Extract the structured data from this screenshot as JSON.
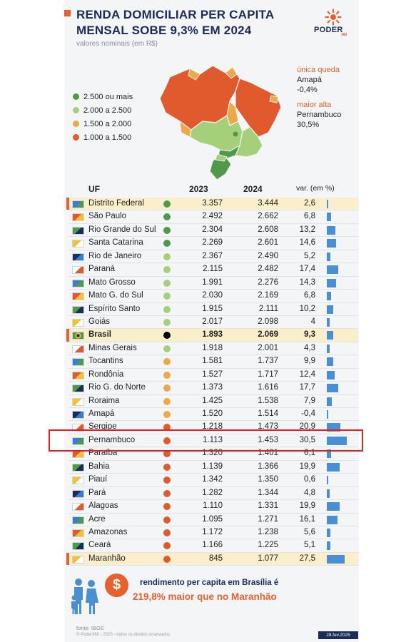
{
  "header": {
    "title": "RENDA DOMICILIAR PER CAPITA MENSAL SOBE 9,3% EM 2024",
    "subtitle": "valores nominais (em R$)",
    "logo_text": "PODER",
    "logo_sub": "360"
  },
  "legend": [
    {
      "label": "2.500 ou mais",
      "color": "#4f9a48"
    },
    {
      "label": "2.000 a 2.500",
      "color": "#a6cf7a"
    },
    {
      "label": "1.500 a 2.000",
      "color": "#eba947"
    },
    {
      "label": "1.000 a 1.500",
      "color": "#e05a2e"
    }
  ],
  "notes": {
    "queda_label": "única queda",
    "queda_state": "Amapá",
    "queda_value": "-0,4%",
    "alta_label": "maior alta",
    "alta_state": "Pernambuco",
    "alta_value": "30,5%"
  },
  "columns": {
    "uf": "UF",
    "y2023": "2023",
    "y2024": "2024",
    "var": "var. (em %)"
  },
  "chart_data": {
    "type": "table",
    "title": "RENDA DOMICILIAR PER CAPITA MENSAL SOBE 9,3% EM 2024",
    "subtitle": "valores nominais (em R$)",
    "columns": [
      "UF",
      "2023",
      "2024",
      "var. (em %)"
    ],
    "rows": [
      {
        "uf": "Distrito Federal",
        "y2023": "3.357",
        "y2024": "3.444",
        "var": "2,6",
        "v": 2.6,
        "group": "2.500 ou mais",
        "highlight": true
      },
      {
        "uf": "São Paulo",
        "y2023": "2.492",
        "y2024": "2.662",
        "var": "6,8",
        "v": 6.8,
        "group": "2.500 ou mais"
      },
      {
        "uf": "Rio Grande do Sul",
        "y2023": "2.304",
        "y2024": "2.608",
        "var": "13,2",
        "v": 13.2,
        "group": "2.500 ou mais"
      },
      {
        "uf": "Santa Catarina",
        "y2023": "2.269",
        "y2024": "2.601",
        "var": "14,6",
        "v": 14.6,
        "group": "2.500 ou mais"
      },
      {
        "uf": "Rio de Janeiro",
        "y2023": "2.367",
        "y2024": "2.490",
        "var": "5,2",
        "v": 5.2,
        "group": "2.000 a 2.500"
      },
      {
        "uf": "Paraná",
        "y2023": "2.115",
        "y2024": "2.482",
        "var": "17,4",
        "v": 17.4,
        "group": "2.000 a 2.500"
      },
      {
        "uf": "Mato Grosso",
        "y2023": "1.991",
        "y2024": "2.276",
        "var": "14,3",
        "v": 14.3,
        "group": "2.000 a 2.500"
      },
      {
        "uf": "Mato G. do Sul",
        "y2023": "2.030",
        "y2024": "2.169",
        "var": "6,8",
        "v": 6.8,
        "group": "2.000 a 2.500"
      },
      {
        "uf": "Espírito Santo",
        "y2023": "1.915",
        "y2024": "2.111",
        "var": "10,2",
        "v": 10.2,
        "group": "2.000 a 2.500"
      },
      {
        "uf": "Goiás",
        "y2023": "2.017",
        "y2024": "2.098",
        "var": "4",
        "v": 4.0,
        "group": "2.000 a 2.500"
      },
      {
        "uf": "Brasil",
        "y2023": "1.893",
        "y2024": "2.069",
        "var": "9,3",
        "v": 9.3,
        "group": "Brasil",
        "highlight": true,
        "strong": true
      },
      {
        "uf": "Minas Gerais",
        "y2023": "1.918",
        "y2024": "2.001",
        "var": "4,3",
        "v": 4.3,
        "group": "2.000 a 2.500"
      },
      {
        "uf": "Tocantins",
        "y2023": "1.581",
        "y2024": "1.737",
        "var": "9,9",
        "v": 9.9,
        "group": "1.500 a 2.000"
      },
      {
        "uf": "Rondônia",
        "y2023": "1.527",
        "y2024": "1.717",
        "var": "12,4",
        "v": 12.4,
        "group": "1.500 a 2.000"
      },
      {
        "uf": "Rio G. do Norte",
        "y2023": "1.373",
        "y2024": "1.616",
        "var": "17,7",
        "v": 17.7,
        "group": "1.500 a 2.000"
      },
      {
        "uf": "Roraima",
        "y2023": "1.425",
        "y2024": "1.538",
        "var": "7,9",
        "v": 7.9,
        "group": "1.500 a 2.000"
      },
      {
        "uf": "Amapá",
        "y2023": "1.520",
        "y2024": "1.514",
        "var": "-0,4",
        "v": -0.4,
        "group": "1.500 a 2.000"
      },
      {
        "uf": "Sergipe",
        "y2023": "1.218",
        "y2024": "1.473",
        "var": "20,9",
        "v": 20.9,
        "group": "1.000 a 1.500"
      },
      {
        "uf": "Pernambuco",
        "y2023": "1.113",
        "y2024": "1.453",
        "var": "30,5",
        "v": 30.5,
        "group": "1.000 a 1.500"
      },
      {
        "uf": "Paraíba",
        "y2023": "1.320",
        "y2024": "1.401",
        "var": "6,1",
        "v": 6.1,
        "group": "1.000 a 1.500"
      },
      {
        "uf": "Bahia",
        "y2023": "1.139",
        "y2024": "1.366",
        "var": "19,9",
        "v": 19.9,
        "group": "1.000 a 1.500"
      },
      {
        "uf": "Piauí",
        "y2023": "1.342",
        "y2024": "1.350",
        "var": "0,6",
        "v": 0.6,
        "group": "1.000 a 1.500"
      },
      {
        "uf": "Pará",
        "y2023": "1.282",
        "y2024": "1.344",
        "var": "4,8",
        "v": 4.8,
        "group": "1.000 a 1.500"
      },
      {
        "uf": "Alagoas",
        "y2023": "1.110",
        "y2024": "1.331",
        "var": "19,9",
        "v": 19.9,
        "group": "1.000 a 1.500"
      },
      {
        "uf": "Acre",
        "y2023": "1.095",
        "y2024": "1.271",
        "var": "16,1",
        "v": 16.1,
        "group": "1.000 a 1.500"
      },
      {
        "uf": "Amazonas",
        "y2023": "1.172",
        "y2024": "1.238",
        "var": "5,6",
        "v": 5.6,
        "group": "1.000 a 1.500"
      },
      {
        "uf": "Ceará",
        "y2023": "1.166",
        "y2024": "1.225",
        "var": "5,1",
        "v": 5.1,
        "group": "1.000 a 1.500"
      },
      {
        "uf": "Maranhão",
        "y2023": "845",
        "y2024": "1.077",
        "var": "27,5",
        "v": 27.5,
        "group": "1.000 a 1.500",
        "highlight": true
      }
    ],
    "group_colors": {
      "2.500 ou mais": "#4f9a48",
      "2.000 a 2.500": "#a6cf7a",
      "1.500 a 2.000": "#eba947",
      "1.000 a 1.500": "#e05a2e",
      "Brasil": "#000000"
    },
    "bar_color": "#4a8fd4"
  },
  "bottom": {
    "coin": "$",
    "line1": "rendimento per capita em Brasília é",
    "line2": "219,8% maior que no Maranhão"
  },
  "footer": {
    "source": "fonte: IBGE",
    "copyright": "© Poder360 - 2025 - todos os direitos reservados",
    "date": "28.fev.2025"
  }
}
